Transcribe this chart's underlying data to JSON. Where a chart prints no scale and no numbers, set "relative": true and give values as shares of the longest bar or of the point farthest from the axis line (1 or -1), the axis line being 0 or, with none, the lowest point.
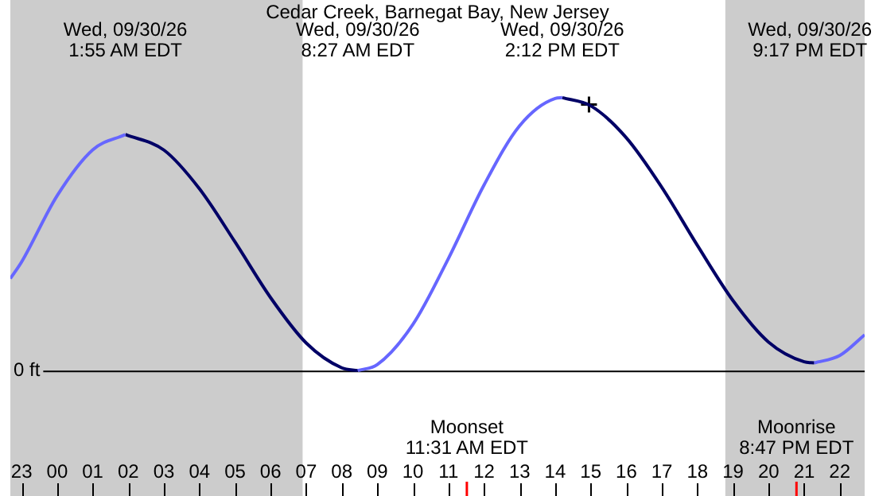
{
  "chart_data": {
    "type": "line",
    "title": "Cedar Creek, Barnegat Bay, New Jersey",
    "relative": true,
    "xlim": [
      "--09-29T22:41",
      "--09-30T22:42"
    ],
    "xticks": [
      {
        "value": "--09-29T23:00",
        "label": "23"
      },
      {
        "value": "--09-30T00:00",
        "label": "00"
      },
      {
        "value": "--09-30T01:00",
        "label": "01"
      },
      {
        "value": "--09-30T02:00",
        "label": "02"
      },
      {
        "value": "--09-30T03:00",
        "label": "03"
      },
      {
        "value": "--09-30T04:00",
        "label": "04"
      },
      {
        "value": "--09-30T05:00",
        "label": "05"
      },
      {
        "value": "--09-30T06:00",
        "label": "06"
      },
      {
        "value": "--09-30T07:00",
        "label": "07"
      },
      {
        "value": "--09-30T08:00",
        "label": "08"
      },
      {
        "value": "--09-30T09:00",
        "label": "09"
      },
      {
        "value": "--09-30T10:00",
        "label": "10"
      },
      {
        "value": "--09-30T11:00",
        "label": "11"
      },
      {
        "value": "--09-30T12:00",
        "label": "12"
      },
      {
        "value": "--09-30T13:00",
        "label": "13"
      },
      {
        "value": "--09-30T14:00",
        "label": "14"
      },
      {
        "value": "--09-30T15:00",
        "label": "15"
      },
      {
        "value": "--09-30T16:00",
        "label": "16"
      },
      {
        "value": "--09-30T17:00",
        "label": "17"
      },
      {
        "value": "--09-30T18:00",
        "label": "18"
      },
      {
        "value": "--09-30T19:00",
        "label": "19"
      },
      {
        "value": "--09-30T20:00",
        "label": "20"
      },
      {
        "value": "--09-30T21:00",
        "label": "21"
      },
      {
        "value": "--09-30T22:00",
        "label": "22"
      }
    ],
    "series": [
      {
        "color": "#6666ff",
        "x": [
          "--09-29T22:41",
          "--09-29T23:00",
          "--09-30T00:00",
          "--09-30T01:00",
          "--09-30T01:55",
          "--09-30T05:00",
          "--09-30T08:27",
          "--09-30T09:00",
          "--09-30T10:00",
          "--09-30T11:00",
          "--09-30T12:00",
          "--09-30T13:00",
          "--09-30T14:00",
          "--09-30T14:12",
          "--09-30T18:00",
          "--09-30T21:17",
          "--09-30T22:00",
          "--09-30T22:42"
        ],
        "values": [
          0.337,
          0.398,
          0.641,
          0.809,
          0.865,
          null,
          0,
          0.022,
          0.169,
          0.411,
          0.68,
          0.897,
          0.997,
          1,
          null,
          0.028,
          0.055,
          0.131
        ]
      },
      {
        "color": "#000066",
        "x": [
          "--09-30T01:55",
          "--09-30T03:00",
          "--09-30T04:00",
          "--09-30T05:00",
          "--09-30T06:00",
          "--09-30T07:00",
          "--09-30T08:00",
          "--09-30T08:27",
          "--09-30T11:00",
          "--09-30T14:12",
          "--09-30T15:00",
          "--09-30T16:00",
          "--09-30T17:00",
          "--09-30T18:00",
          "--09-30T19:00",
          "--09-30T20:00",
          "--09-30T21:00",
          "--09-30T21:17"
        ],
        "values": [
          0.865,
          0.808,
          0.666,
          0.471,
          0.267,
          0.101,
          0.01,
          0,
          null,
          1,
          0.97,
          0.853,
          0.671,
          0.458,
          0.256,
          0.104,
          0.032,
          0.028
        ]
      },
      {
        "type": "scatter",
        "color": "#000000",
        "marker": "cross",
        "x": [
          "--09-30T14:57"
        ],
        "values": [
          0.975
        ]
      }
    ],
    "ref_lines": [
      {
        "axis": "y",
        "value": 0,
        "label": "0 ft",
        "color": "#000000"
      },
      {
        "axis": "x",
        "value": "--09-30T11:31",
        "label": "Moonset\n11:31 AM EDT",
        "color": "#ff0000"
      },
      {
        "axis": "x",
        "value": "--09-30T20:47",
        "label": "Moonrise\n8:47 PM EDT",
        "color": "#ff0000"
      }
    ],
    "bands": [
      {
        "axis": "x",
        "from": "--09-29T22:41",
        "to": "--09-30T06:54",
        "color": "#cccccc"
      },
      {
        "axis": "x",
        "from": "--09-30T18:47",
        "to": "--09-30T22:42",
        "color": "#cccccc"
      }
    ],
    "annotations": [
      "Wed, 09/30/26\n1:55 AM EDT",
      "Wed, 09/30/26\n8:27 AM EDT",
      "Wed, 09/30/26\n2:12 PM EDT",
      "Wed, 09/30/26\n9:17 PM EDT"
    ],
    "grid": false,
    "legend": false,
    "marker": "none",
    "line_style": "solid"
  }
}
